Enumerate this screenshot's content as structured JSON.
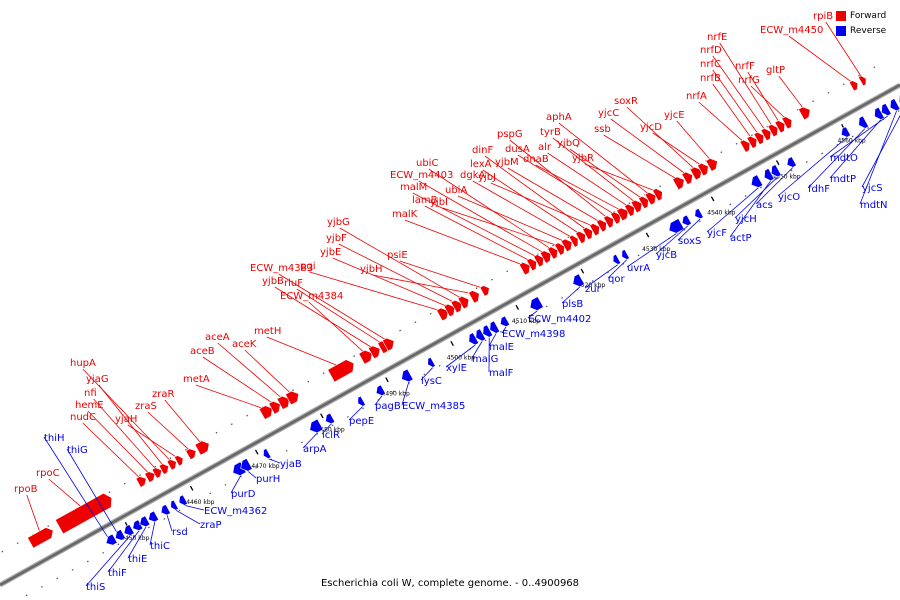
{
  "caption": "Escherichia coli W, complete genome. - 0..4900968",
  "legend": [
    {
      "label": "Forward",
      "color": "#ee0000"
    },
    {
      "label": "Reverse",
      "color": "#0000ee"
    }
  ],
  "colors": {
    "forward": "#ee0000",
    "reverse": "#0000ee",
    "backbone": "#666666",
    "connector_fwd": "#ee0000",
    "connector_rev": "#0000ee"
  },
  "ticks": [
    "4450 kbp",
    "4460 kbp",
    "4470 kbp",
    "4480 kbp",
    "4490 kbp",
    "4500 kbp",
    "4510 kbp",
    "4520 kbp",
    "4530 kbp",
    "4540 kbp",
    "4550 kbp",
    "4560 kbp",
    "4570 kbp"
  ],
  "forward_labels": [
    "rpoB",
    "rpoC",
    "nudC",
    "hemE",
    "nfi",
    "yjaG",
    "hupA",
    "yjaH",
    "zraS",
    "zraR",
    "metA",
    "aceB",
    "aceA",
    "aceK",
    "metH",
    "ECW_m4384",
    "yjbB",
    "rluF",
    "ECW_m4383",
    "pgi",
    "yjbE",
    "yjbF",
    "yjbG",
    "yjbH",
    "psiE",
    "malK",
    "lamB",
    "malM",
    "ECW_m4403",
    "ubiC",
    "yjbI",
    "ubiA",
    "dgkA",
    "lexA",
    "dinF",
    "yjbJ",
    "yjbM",
    "pspG",
    "dusA",
    "dnaB",
    "alr",
    "tyrB",
    "yjbQ",
    "aphA",
    "yjbR",
    "ssb",
    "yjcC",
    "soxR",
    "yjcD",
    "yjcE",
    "nrfA",
    "nrfB",
    "nrfC",
    "nrfD",
    "nrfE",
    "nrfF",
    "nrfG",
    "gltP",
    "ECW_m4450",
    "rpiB"
  ],
  "reverse_labels": [
    "thiH",
    "thiG",
    "thiS",
    "thiF",
    "thiE",
    "thiC",
    "rsd",
    "zraP",
    "ECW_m4362",
    "purD",
    "purH",
    "yjaB",
    "arpA",
    "iclR",
    "pepE",
    "pagB",
    "ECW_m4385",
    "lysC",
    "xylE",
    "malG",
    "malF",
    "malE",
    "ECW_m4398",
    "ECW_m4402",
    "plsB",
    "zur",
    "qor",
    "uvrA",
    "yjcB",
    "soxS",
    "yjcF",
    "actP",
    "yjcH",
    "acs",
    "yjcO",
    "fdhF",
    "mdtP",
    "mdtO",
    "mdtN",
    "yjcS"
  ]
}
